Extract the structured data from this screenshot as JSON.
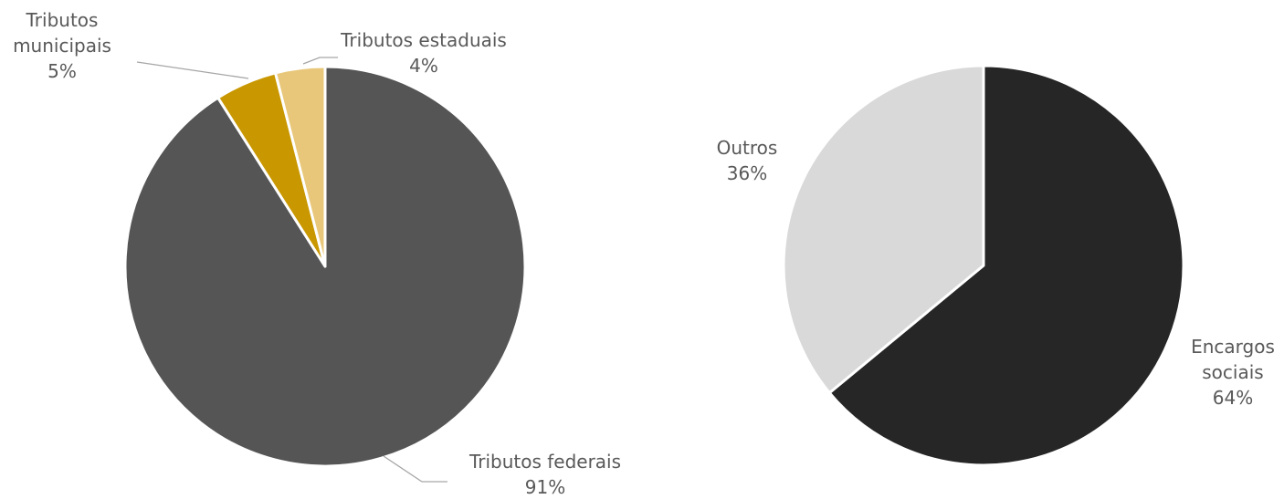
{
  "chart_data": [
    {
      "type": "pie",
      "categories": [
        "Tributos federais",
        "Tributos municipais",
        "Tributos estaduais"
      ],
      "values": [
        91,
        5,
        4
      ],
      "value_labels": [
        "91%",
        "5%",
        "4%"
      ],
      "colors": [
        "#555555",
        "#c99700",
        "#e8c77a"
      ]
    },
    {
      "type": "pie",
      "categories": [
        "Encargos sociais",
        "Outros"
      ],
      "values": [
        64,
        36
      ],
      "value_labels": [
        "64%",
        "36%"
      ],
      "colors": [
        "#262626",
        "#d9d9d9"
      ]
    }
  ]
}
